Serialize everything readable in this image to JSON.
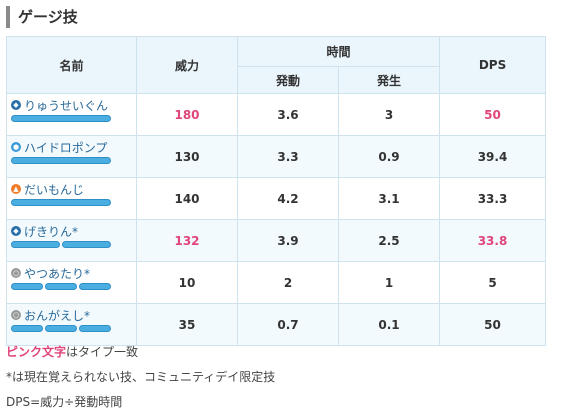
{
  "section_title": "ゲージ技",
  "table": {
    "headers": {
      "name": "名前",
      "power": "威力",
      "time": "時間",
      "activation": "発動",
      "occurrence": "発生",
      "dps": "DPS"
    },
    "rows": [
      {
        "name": "りゅうせいぐん",
        "type_icon": "dragon-icon",
        "bars": 1,
        "power": "180",
        "activation": "3.6",
        "occurrence": "3",
        "dps": "50",
        "stab": true
      },
      {
        "name": "ハイドロポンプ",
        "type_icon": "water-icon",
        "bars": 1,
        "power": "130",
        "activation": "3.3",
        "occurrence": "0.9",
        "dps": "39.4",
        "stab": false
      },
      {
        "name": "だいもんじ",
        "type_icon": "fire-icon",
        "bars": 1,
        "power": "140",
        "activation": "4.2",
        "occurrence": "3.1",
        "dps": "33.3",
        "stab": false
      },
      {
        "name": "げきりん*",
        "type_icon": "dragon-icon",
        "bars": 2,
        "power": "132",
        "activation": "3.9",
        "occurrence": "2.5",
        "dps": "33.8",
        "stab": true
      },
      {
        "name": "やつあたり*",
        "type_icon": "normal-icon",
        "bars": 3,
        "power": "10",
        "activation": "2",
        "occurrence": "1",
        "dps": "5",
        "stab": false
      },
      {
        "name": "おんがえし*",
        "type_icon": "normal-icon",
        "bars": 3,
        "power": "35",
        "activation": "0.7",
        "occurrence": "0.1",
        "dps": "50",
        "stab": false
      }
    ]
  },
  "notes": {
    "pink_label": "ピンク文字",
    "pink_rest": "はタイプ一致",
    "asterisk_note": "*は現在覚えられない技、コミュニティデイ限定技",
    "dps_formula": "DPS=威力÷発動時間"
  },
  "colors": {
    "stab_pink": "#e0457b",
    "header_bg": "#eaf6fc",
    "bar_blue": "#4aaee0"
  }
}
